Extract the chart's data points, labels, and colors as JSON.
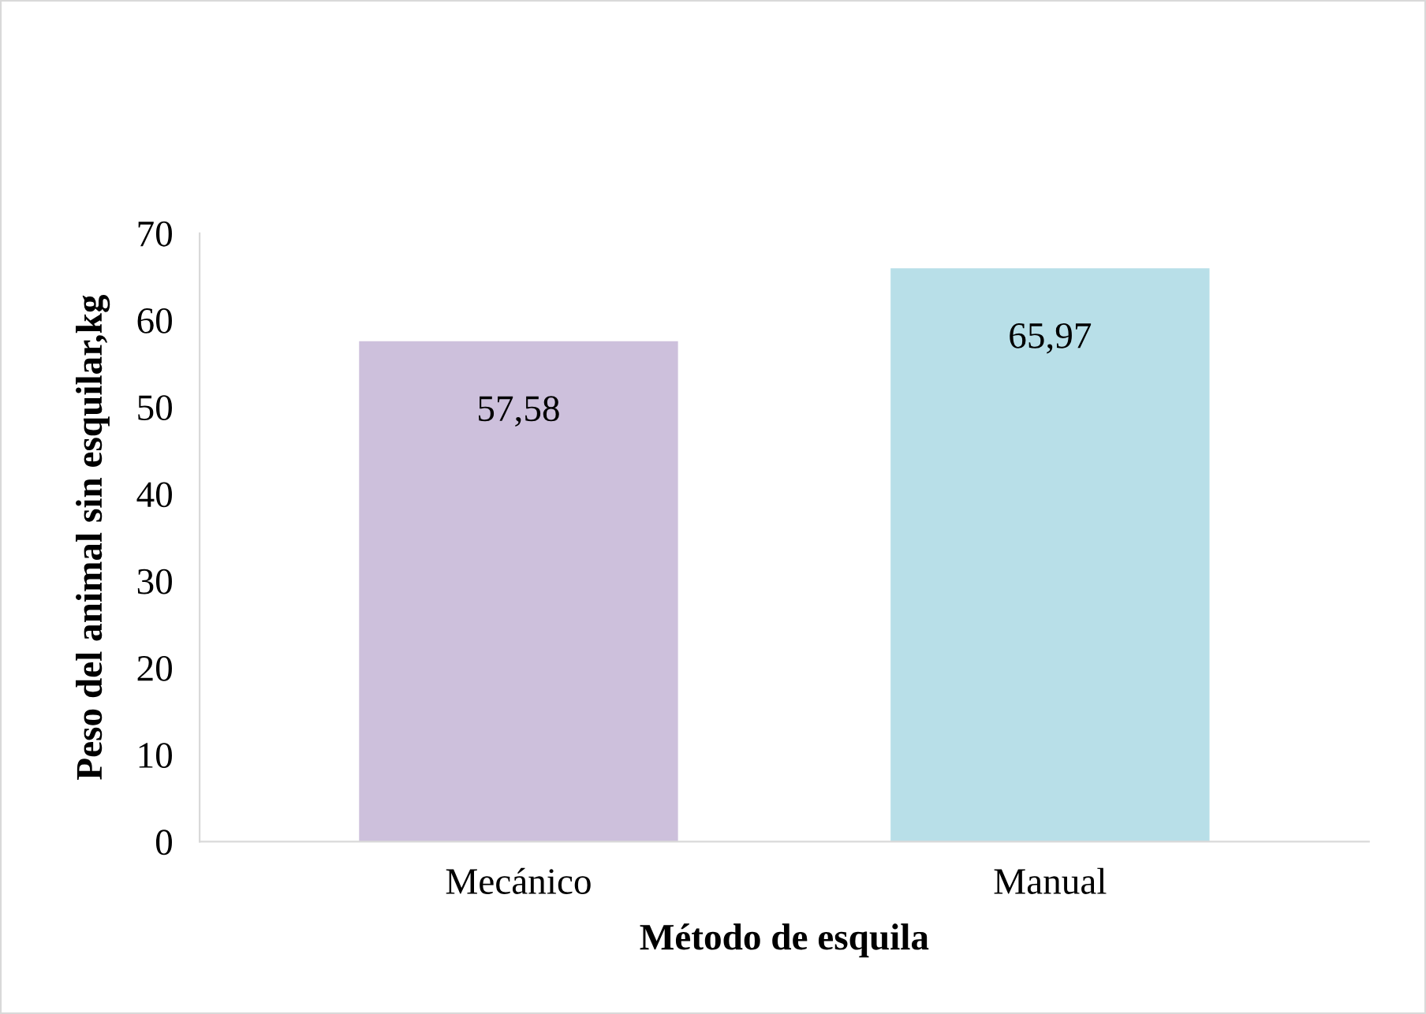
{
  "chart_data": {
    "type": "bar",
    "xlabel": "Método de esquila",
    "ylabel": "Peso del animal sin esquilar,kg",
    "categories": [
      "Mecánico",
      "Manual"
    ],
    "values": [
      57.58,
      65.97
    ],
    "colors": [
      "#cdc0dc",
      "#b8dfe8"
    ],
    "value_labels": [
      "57,58",
      "65,97"
    ],
    "ylim": [
      0,
      70
    ],
    "yticks": [
      0,
      10,
      20,
      30,
      40,
      50,
      60,
      70
    ],
    "grid": false
  }
}
